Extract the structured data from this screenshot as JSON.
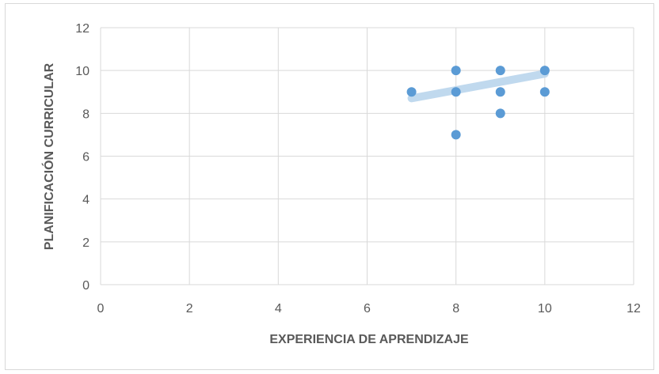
{
  "chart_data": {
    "type": "scatter",
    "title": "",
    "xlabel": "EXPERIENCIA DE APRENDIZAJE",
    "ylabel": "PLANIFICACIÓN CURRICULAR",
    "xlim": [
      0,
      12
    ],
    "ylim": [
      0,
      12
    ],
    "xticks": [
      "0",
      "2",
      "4",
      "6",
      "8",
      "10",
      "12"
    ],
    "yticks": [
      "0",
      "2",
      "4",
      "6",
      "8",
      "10",
      "12"
    ],
    "grid": true,
    "legend": "none",
    "series": [
      {
        "points": [
          {
            "x": 7,
            "y": 9
          },
          {
            "x": 8,
            "y": 10
          },
          {
            "x": 8,
            "y": 9
          },
          {
            "x": 8,
            "y": 7
          },
          {
            "x": 9,
            "y": 10
          },
          {
            "x": 9,
            "y": 9
          },
          {
            "x": 9,
            "y": 8
          },
          {
            "x": 10,
            "y": 10
          },
          {
            "x": 10,
            "y": 9
          }
        ],
        "color": "#5b9bd5"
      }
    ],
    "trendline": {
      "x": [
        7,
        10
      ],
      "y": [
        8.7,
        9.85
      ],
      "color": "#bdd7ee"
    }
  },
  "colors": {
    "grid": "#d9d9d9",
    "tick_text": "#595959",
    "marker": "#5b9bd5",
    "trend": "#bdd7ee"
  }
}
